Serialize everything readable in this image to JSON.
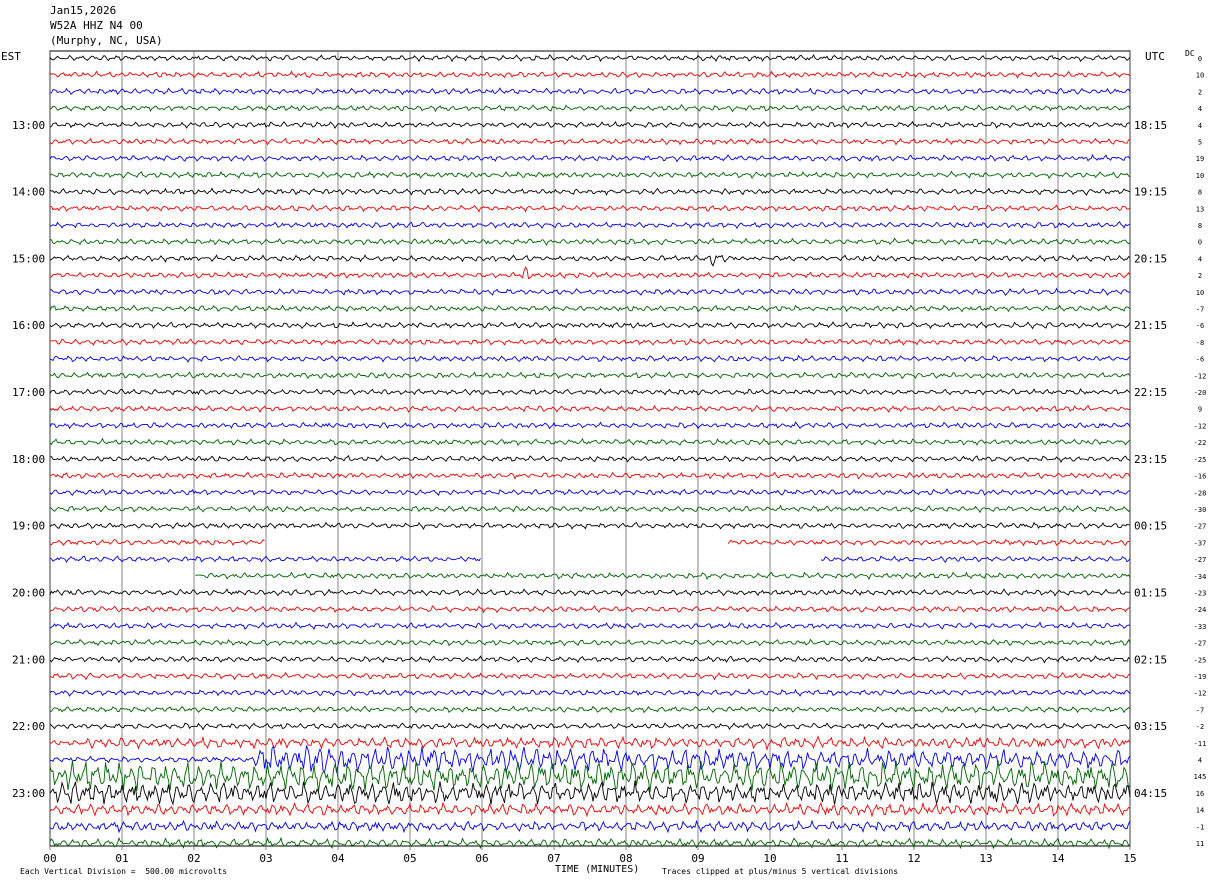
{
  "header": {
    "date": "Jan15,2026",
    "station": "W52A HHZ N4 00",
    "location": "(Murphy, NC, USA)"
  },
  "labels": {
    "left_tz": "EST",
    "right_tz": "UTC",
    "dc": "DC"
  },
  "footer": {
    "scale_note": "Each Vertical Division =  500.00 microvolts",
    "xlabel": "TIME (MINUTES)",
    "clip_note": "Traces clipped at plus/minus 5 vertical divisions"
  },
  "colors": {
    "trace_cycle": [
      "#000000",
      "#ff0000",
      "#0000ff",
      "#006400"
    ],
    "grid": "#000000",
    "background": "#ffffff"
  },
  "chart_data": {
    "type": "line",
    "subtype": "helicorder",
    "xlabel": "TIME (MINUTES)",
    "xlim": [
      0,
      15
    ],
    "x_ticks": [
      "00",
      "01",
      "02",
      "03",
      "04",
      "05",
      "06",
      "07",
      "08",
      "09",
      "10",
      "11",
      "12",
      "13",
      "14",
      "15"
    ],
    "rows_per_hour": 4,
    "minutes_per_row": 15,
    "left_hour_labels": [
      "13:00",
      "14:00",
      "15:00",
      "16:00",
      "17:00",
      "18:00",
      "19:00",
      "20:00",
      "21:00",
      "22:00",
      "23:00"
    ],
    "right_hour_labels": [
      "18:15",
      "19:15",
      "20:15",
      "21:15",
      "22:15",
      "23:15",
      "00:15",
      "01:15",
      "02:15",
      "03:15",
      "04:15"
    ],
    "dc_offsets": [
      "0",
      "10",
      "2",
      "4",
      "4",
      "5",
      "19",
      "10",
      "8",
      "13",
      "8",
      "0",
      "4",
      "2",
      "10",
      "-7",
      "-6",
      "-8",
      "-6",
      "-12",
      "-20",
      "9",
      "-12",
      "-22",
      "-25",
      "-16",
      "-28",
      "-30",
      "-27",
      "-37",
      "-27",
      "-34",
      "-23",
      "-24",
      "-33",
      "-27",
      "-25",
      "-19",
      "-12",
      "-7",
      "-2",
      "-11",
      "4",
      "145",
      "16",
      "14",
      "-1",
      "11"
    ],
    "events": [
      {
        "row": 13,
        "minute": 6.6,
        "description": "small local event"
      },
      {
        "row": 12,
        "minute": 9.2,
        "description": "small event"
      },
      {
        "row": 42,
        "minute": 2.9,
        "description": "large teleseism onset"
      }
    ],
    "data_gaps": [
      {
        "row": 29,
        "from_minute": 3.0,
        "to_minute": 9.4
      },
      {
        "row": 30,
        "from_minute": 6.0,
        "to_minute": 10.7
      },
      {
        "row": 31,
        "from_minute": 0.0,
        "to_minute": 2.0
      }
    ]
  }
}
